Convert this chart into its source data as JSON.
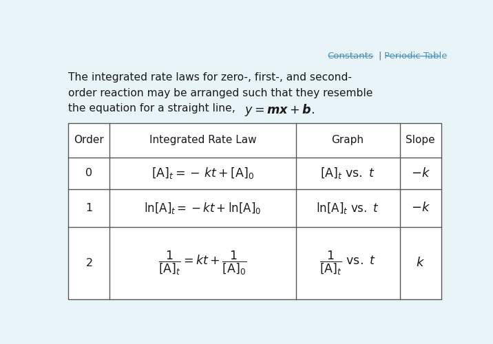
{
  "background_color": "#e8f4f8",
  "title_link_color": "#4a90b8",
  "text_color": "#1a1a1a",
  "table_border_color": "#555555",
  "body_text_line1": "The integrated rate laws for zero-, first-, and second-",
  "body_text_line2": "order reaction may be arranged such that they resemble",
  "body_text_line3": "the equation for a straight line,",
  "col_headers": [
    "Order",
    "Integrated Rate Law",
    "Graph",
    "Slope"
  ],
  "row_orders": [
    "0",
    "1",
    "2"
  ],
  "row_laws": [
    "$\\left[\\mathrm{A}\\right]_t = -\\,kt + \\left[\\mathrm{A}\\right]_0$",
    "$\\ln\\!\\left[\\mathrm{A}\\right]_t = -kt + \\ln\\!\\left[\\mathrm{A}\\right]_0$",
    "$\\dfrac{1}{\\left[\\mathrm{A}\\right]_t} = kt + \\dfrac{1}{\\left[\\mathrm{A}\\right]_0}$"
  ],
  "row_graphs": [
    "$\\left[\\mathrm{A}\\right]_t\\ \\mathrm{vs.}\\ t$",
    "$\\ln\\!\\left[\\mathrm{A}\\right]_t\\ \\mathrm{vs.}\\ t$",
    "$\\dfrac{1}{\\left[\\mathrm{A}\\right]_t}\\ \\mathrm{vs.}\\ t$"
  ],
  "row_slopes": [
    "$-k$",
    "$-k$",
    "$k$"
  ]
}
